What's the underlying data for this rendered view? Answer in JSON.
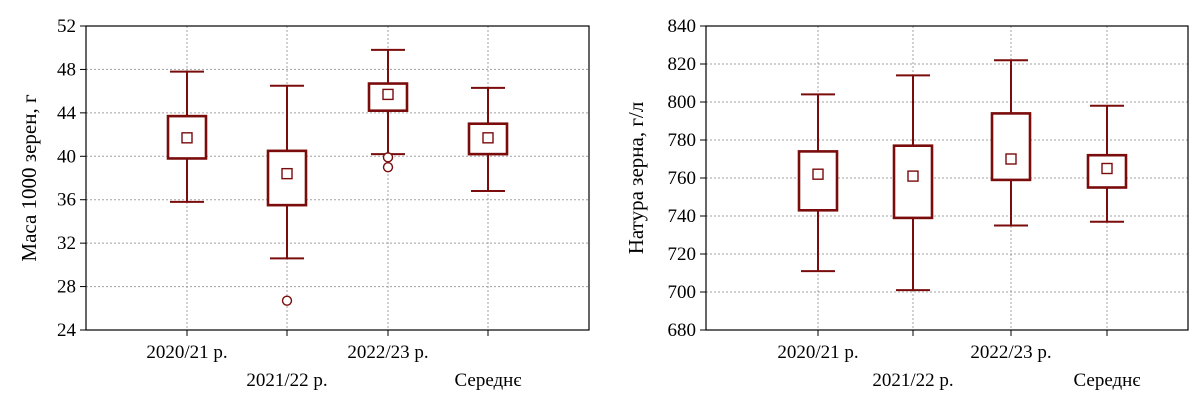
{
  "chart_data": [
    {
      "type": "box",
      "ylabel": "Маса 1000 зерен, г",
      "ylim": [
        24,
        52
      ],
      "yticks": [
        24,
        28,
        32,
        36,
        40,
        44,
        48,
        52
      ],
      "grid": true,
      "categories": [
        "2020/21 р.",
        "2021/22 р.",
        "2022/23 р.",
        "Середнє"
      ],
      "color": "#7a0c0c",
      "boxes": [
        {
          "median": 41.7,
          "q1": 39.8,
          "q3": 43.7,
          "whisker_low": 35.8,
          "whisker_high": 47.8,
          "outliers": []
        },
        {
          "median": 38.4,
          "q1": 35.5,
          "q3": 40.5,
          "whisker_low": 30.6,
          "whisker_high": 46.5,
          "outliers": [
            26.7
          ]
        },
        {
          "median": 45.7,
          "q1": 44.2,
          "q3": 46.7,
          "whisker_low": 40.2,
          "whisker_high": 49.8,
          "outliers": [
            39.9,
            39.0
          ]
        },
        {
          "median": 41.7,
          "q1": 40.2,
          "q3": 43.0,
          "whisker_low": 36.8,
          "whisker_high": 46.3,
          "outliers": []
        }
      ]
    },
    {
      "type": "box",
      "ylabel": "Натура зерна, г/л",
      "ylim": [
        680,
        840
      ],
      "yticks": [
        680,
        700,
        720,
        740,
        760,
        780,
        800,
        820,
        840
      ],
      "grid": true,
      "categories": [
        "2020/21 р.",
        "2021/22 р.",
        "2022/23 р.",
        "Середнє"
      ],
      "color": "#7a0c0c",
      "boxes": [
        {
          "median": 762,
          "q1": 743,
          "q3": 774,
          "whisker_low": 711,
          "whisker_high": 804,
          "outliers": []
        },
        {
          "median": 761,
          "q1": 739,
          "q3": 777,
          "whisker_low": 701,
          "whisker_high": 814,
          "outliers": []
        },
        {
          "median": 770,
          "q1": 759,
          "q3": 794,
          "whisker_low": 735,
          "whisker_high": 822,
          "outliers": []
        },
        {
          "median": 765,
          "q1": 755,
          "q3": 772,
          "whisker_low": 737,
          "whisker_high": 798,
          "outliers": []
        }
      ]
    }
  ]
}
